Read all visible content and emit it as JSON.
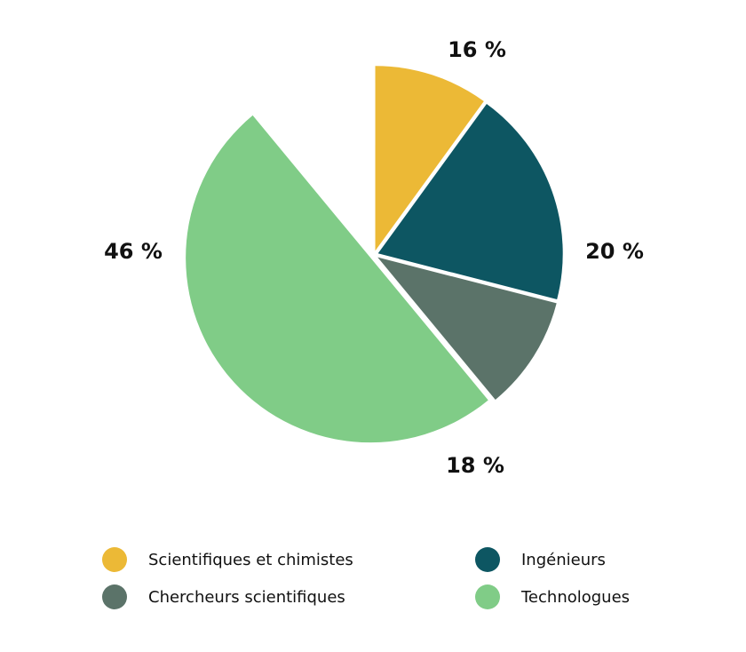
{
  "chart_data": {
    "type": "pie",
    "title": "",
    "categories": [
      "Scientifiques et chimistes",
      "Ingénieurs",
      "Chercheurs scientifiques",
      "Technologues"
    ],
    "values": [
      16,
      20,
      18,
      46
    ],
    "value_labels": [
      "16 %",
      "20 %",
      "18 %",
      "46 %"
    ],
    "colors": [
      "#ECB936",
      "#0D5662",
      "#5B7369",
      "#80CC87"
    ],
    "legend_position": "bottom"
  }
}
